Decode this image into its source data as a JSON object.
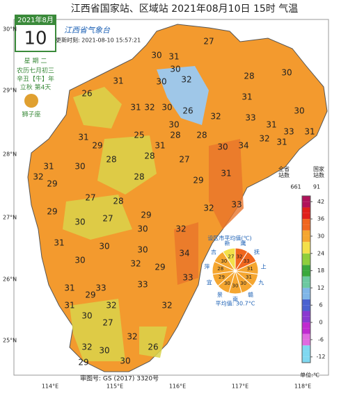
{
  "header": {
    "title": "江西省国家站、区域站  2021年08月10日 15时  气温",
    "logo": "江西省气象台",
    "update_time": "更新时刻: 2021-08-10 15:57:21"
  },
  "calendar": {
    "month": "2021年8月",
    "day": "10",
    "weekday": "星 期 二",
    "lunar": "农历七月初三",
    "year": "辛丑【牛】年",
    "solar_term": "立秋 第4天",
    "zodiac": "狮子座"
  },
  "axes": {
    "lat_labels": [
      "30°N",
      "29°N",
      "28°N",
      "27°N",
      "26°N",
      "25°N"
    ],
    "lon_labels": [
      "114°E",
      "115°E",
      "116°E",
      "117°E",
      "118°E"
    ]
  },
  "stations": [
    30,
    31,
    30,
    27,
    28,
    30,
    30,
    32,
    31,
    26,
    31,
    31,
    32,
    30,
    26,
    32,
    33,
    31,
    30,
    31,
    33,
    30,
    28,
    28,
    30,
    34,
    32,
    31,
    31,
    25,
    31,
    29,
    28,
    30,
    31,
    32,
    29,
    28,
    27,
    29,
    31,
    28,
    27,
    28,
    29,
    30,
    27,
    29,
    32,
    33,
    30,
    32,
    31,
    30,
    30,
    34,
    30,
    32,
    29,
    33,
    33,
    31,
    29,
    33,
    31,
    32,
    30,
    32,
    27,
    32,
    32,
    30,
    26,
    30,
    29
  ],
  "legend": {
    "total_label": "全省\n站数",
    "total": "661",
    "national_label": "国家\n站数",
    "national": "91",
    "range": [
      -14,
      44
    ],
    "ticks": [
      42,
      36,
      30,
      24,
      18,
      12,
      6,
      0,
      -6,
      -12
    ],
    "unit": "单位:℃"
  },
  "city_average": {
    "title": "设区市平均值(℃)",
    "cities": [
      {
        "name": "鹰",
        "value": 32
      },
      {
        "name": "抚",
        "value": 33
      },
      {
        "name": "上",
        "value": 31
      },
      {
        "name": "九",
        "value": 31
      },
      {
        "name": "赣",
        "value": 30
      },
      {
        "name": "南",
        "value": 30
      },
      {
        "name": "景",
        "value": 30
      },
      {
        "name": "宜",
        "value": 29
      },
      {
        "name": "萍",
        "value": 28
      },
      {
        "name": "吉",
        "value": 30
      },
      {
        "name": "新",
        "value": 27
      }
    ],
    "mean": "平均值: 30.7°C"
  },
  "footer": "审图号: GS (2017) 3320号"
}
